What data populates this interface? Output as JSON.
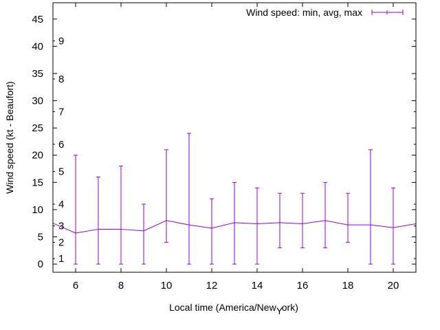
{
  "chart_data": {
    "type": "line",
    "title": "",
    "xlabel": "Local time (America/New York)",
    "xlabel_parts": [
      "Local time (America/New",
      "Y",
      "ork)"
    ],
    "ylabel": "Wind speed (kt - Beaufort)",
    "xlim": [
      5,
      21
    ],
    "ylim": [
      -1.5,
      48
    ],
    "x_ticks": [
      6,
      8,
      10,
      12,
      14,
      16,
      18,
      20
    ],
    "y_ticks": [
      0,
      5,
      10,
      15,
      20,
      25,
      30,
      35,
      40,
      45
    ],
    "beaufort_labels": [
      {
        "label": "1",
        "value": 1
      },
      {
        "label": "2",
        "value": 4
      },
      {
        "label": "3",
        "value": 7
      },
      {
        "label": "4",
        "value": 11
      },
      {
        "label": "5",
        "value": 17
      },
      {
        "label": "6",
        "value": 22
      },
      {
        "label": "7",
        "value": 28
      },
      {
        "label": "8",
        "value": 34
      },
      {
        "label": "9",
        "value": 41
      }
    ],
    "legend": {
      "label": "Wind speed: min, avg, max",
      "position": "top-right"
    },
    "series": [
      {
        "name": "Wind speed: min, avg, max",
        "color": "#9400d3",
        "x": [
          5,
          6,
          7,
          8,
          9,
          10,
          11,
          12,
          13,
          14,
          15,
          16,
          17,
          18,
          19,
          20,
          21
        ],
        "avg": [
          7.5,
          5.7,
          6.4,
          6.4,
          6.1,
          8.0,
          7.2,
          6.6,
          7.6,
          7.4,
          7.6,
          7.4,
          8.0,
          7.2,
          7.2,
          6.7,
          7.4
        ],
        "min": [
          null,
          0,
          0,
          0,
          0,
          4,
          0,
          0,
          0,
          0,
          3,
          3,
          3,
          4,
          0,
          0,
          null
        ],
        "max": [
          null,
          20,
          16,
          18,
          11,
          21,
          24,
          12,
          15,
          14,
          13,
          13,
          15,
          13,
          21,
          14,
          null
        ]
      }
    ]
  }
}
